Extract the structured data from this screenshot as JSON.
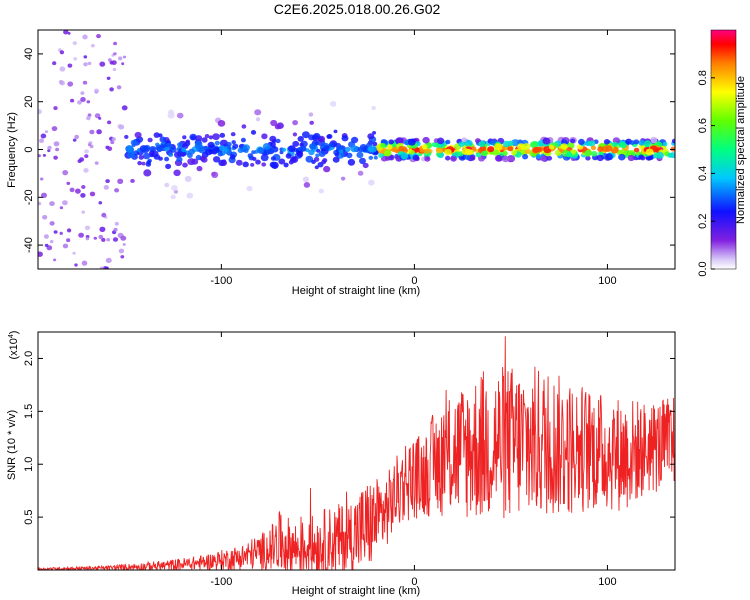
{
  "title": "C2E6.2025.018.00.26.G02",
  "chart_data": [
    {
      "type": "heatmap",
      "xlabel": "Height of straight line (km)",
      "ylabel": "Frequency (Hz)",
      "xlim": [
        -195,
        135
      ],
      "ylim": [
        -50,
        50
      ],
      "xticks": [
        -100,
        0,
        100
      ],
      "yticks": [
        -40,
        -20,
        0,
        20,
        40
      ],
      "colorbar": {
        "label": "Normalized spectral amplitude",
        "range": [
          0,
          1
        ],
        "ticks": [
          0.0,
          0.2,
          0.4,
          0.6,
          0.8
        ],
        "tick_labels": [
          "0.0",
          "0.2",
          "0.4",
          "0.6",
          "0.8"
        ],
        "colormap": [
          "#ffffff",
          "#d8c8f8",
          "#8020e0",
          "#1010ff",
          "#00ffff",
          "#00ff40",
          "#ffff00",
          "#ff8000",
          "#ff0000",
          "#ff0080"
        ]
      },
      "features": [
        {
          "x_range": [
            -195,
            -20
          ],
          "freq_center": 0,
          "freq_spread": 8,
          "max_amplitude": 0.35,
          "description_hidden": true
        },
        {
          "x_range": [
            -20,
            135
          ],
          "freq_center": 0,
          "freq_spread": 2,
          "max_amplitude": 0.95
        }
      ]
    },
    {
      "type": "line",
      "xlabel": "Height of straight line (km)",
      "ylabel": "SNR (10 * v/v)",
      "y_multiplier_label": "(x10",
      "y_multiplier_exp": "4",
      "y_multiplier_close": ")",
      "xlim": [
        -195,
        135
      ],
      "ylim": [
        0,
        2.25
      ],
      "xticks": [
        -100,
        0,
        100
      ],
      "yticks": [
        0.5,
        1.0,
        1.5,
        2.0
      ],
      "ytick_labels": [
        "0.5",
        "1.0",
        "1.5",
        "2.0"
      ],
      "color": "#ee2222",
      "envelope": {
        "x": [
          -195,
          -160,
          -130,
          -110,
          -90,
          -75,
          -70,
          -60,
          -45,
          -35,
          -25,
          -15,
          -10,
          -5,
          5,
          10,
          20,
          30,
          40,
          50,
          60,
          70,
          80,
          90,
          100,
          110,
          120,
          135
        ],
        "y_base": [
          0.01,
          0.02,
          0.04,
          0.07,
          0.12,
          0.2,
          0.25,
          0.2,
          0.25,
          0.3,
          0.4,
          0.55,
          0.7,
          0.85,
          0.9,
          1.0,
          1.1,
          1.15,
          1.2,
          1.2,
          1.2,
          1.2,
          1.15,
          1.15,
          1.1,
          1.1,
          1.15,
          1.2
        ],
        "y_amp": [
          0.01,
          0.02,
          0.05,
          0.07,
          0.12,
          0.2,
          0.3,
          0.25,
          0.35,
          0.35,
          0.45,
          0.35,
          0.35,
          0.4,
          0.4,
          0.5,
          0.6,
          0.7,
          0.75,
          0.75,
          0.75,
          0.7,
          0.65,
          0.6,
          0.55,
          0.55,
          0.45,
          0.45
        ]
      }
    }
  ]
}
